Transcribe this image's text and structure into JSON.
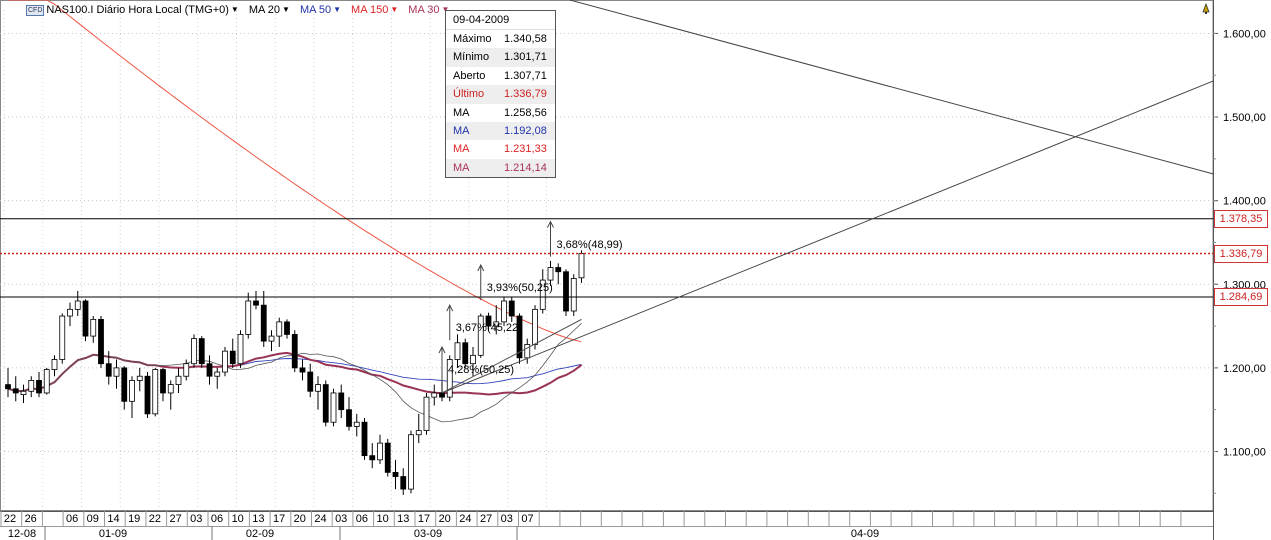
{
  "header": {
    "symbol": "NAS100.I",
    "instrument_badge": "CFD",
    "period": "Diário",
    "timezone": "Hora Local (TMG+0)",
    "indicators": [
      {
        "label": "MA 20",
        "color": "#222222"
      },
      {
        "label": "MA 50",
        "color": "#2233aa"
      },
      {
        "label": "MA 150",
        "color": "#dd2222"
      },
      {
        "label": "MA 30",
        "color": "#aa3355"
      }
    ]
  },
  "infobox": {
    "date": "09-04-2009",
    "rows": [
      {
        "label": "Máximo",
        "value": "1.340,58",
        "color": "#000000"
      },
      {
        "label": "Mínimo",
        "value": "1.301,71",
        "color": "#000000"
      },
      {
        "label": "Aberto",
        "value": "1.307,71",
        "color": "#000000"
      },
      {
        "label": "Último",
        "value": "1.336,79",
        "color": "#cc2222"
      },
      {
        "label": "MA",
        "value": "1.258,56",
        "color": "#000000"
      },
      {
        "label": "MA",
        "value": "1.192,08",
        "color": "#2233aa"
      },
      {
        "label": "MA",
        "value": "1.231,33",
        "color": "#dd2222"
      },
      {
        "label": "MA",
        "value": "1.214,14",
        "color": "#aa3355"
      }
    ]
  },
  "annotations": [
    {
      "text": "4,28%(50,25)",
      "date": "2009-03-16",
      "price": 1195
    },
    {
      "text": "3,67%(45,22)",
      "date": "2009-03-17",
      "price": 1245
    },
    {
      "text": "3,93%(50,25)",
      "date": "2009-03-23",
      "price": 1293
    },
    {
      "text": "3,68%(48,99)",
      "date": "2009-04-03",
      "price": 1345
    }
  ],
  "price_tags": [
    {
      "text": "1.378,35",
      "price": 1378.35
    },
    {
      "text": "1.336,79",
      "price": 1336.79
    },
    {
      "text": "1.284,69",
      "price": 1284.69
    }
  ],
  "chart_data": {
    "type": "candlestick",
    "ylim": [
      1030,
      1640
    ],
    "y_ticks": [
      {
        "value": 1100,
        "label": "1.100,00"
      },
      {
        "value": 1200,
        "label": "1.200,00"
      },
      {
        "value": 1300,
        "label": "1.300,00"
      },
      {
        "value": 1400,
        "label": "1.400,00"
      },
      {
        "value": 1500,
        "label": "1.500,00"
      },
      {
        "value": 1600,
        "label": "1.600,00"
      }
    ],
    "grid": true,
    "x_day_labels": [
      "22",
      "26",
      "06",
      "09",
      "14",
      "19",
      "22",
      "27",
      "03",
      "06",
      "10",
      "13",
      "17",
      "20",
      "24",
      "03",
      "06",
      "10",
      "13",
      "17",
      "20",
      "24",
      "27",
      "03",
      "07"
    ],
    "x_month_labels": [
      "12-08",
      "01-09",
      "02-09",
      "03-09",
      "04-09"
    ],
    "candles": [
      {
        "date": "2008-12-22",
        "o": 1180,
        "h": 1200,
        "l": 1165,
        "c": 1175
      },
      {
        "date": "2008-12-23",
        "o": 1175,
        "h": 1190,
        "l": 1160,
        "c": 1170
      },
      {
        "date": "2008-12-24",
        "o": 1168,
        "h": 1180,
        "l": 1158,
        "c": 1172
      },
      {
        "date": "2008-12-26",
        "o": 1172,
        "h": 1190,
        "l": 1165,
        "c": 1185
      },
      {
        "date": "2008-12-29",
        "o": 1185,
        "h": 1195,
        "l": 1165,
        "c": 1170
      },
      {
        "date": "2008-12-30",
        "o": 1170,
        "h": 1200,
        "l": 1168,
        "c": 1198
      },
      {
        "date": "2008-12-31",
        "o": 1198,
        "h": 1215,
        "l": 1190,
        "c": 1210
      },
      {
        "date": "2009-01-02",
        "o": 1210,
        "h": 1265,
        "l": 1205,
        "c": 1262
      },
      {
        "date": "2009-01-05",
        "o": 1262,
        "h": 1278,
        "l": 1250,
        "c": 1270
      },
      {
        "date": "2009-01-06",
        "o": 1270,
        "h": 1292,
        "l": 1262,
        "c": 1280
      },
      {
        "date": "2009-01-07",
        "o": 1280,
        "h": 1282,
        "l": 1232,
        "c": 1238
      },
      {
        "date": "2009-01-08",
        "o": 1238,
        "h": 1262,
        "l": 1230,
        "c": 1258
      },
      {
        "date": "2009-01-09",
        "o": 1258,
        "h": 1262,
        "l": 1200,
        "c": 1205
      },
      {
        "date": "2009-01-12",
        "o": 1205,
        "h": 1220,
        "l": 1180,
        "c": 1190
      },
      {
        "date": "2009-01-13",
        "o": 1190,
        "h": 1210,
        "l": 1175,
        "c": 1200
      },
      {
        "date": "2009-01-14",
        "o": 1200,
        "h": 1202,
        "l": 1150,
        "c": 1160
      },
      {
        "date": "2009-01-15",
        "o": 1160,
        "h": 1190,
        "l": 1140,
        "c": 1185
      },
      {
        "date": "2009-01-16",
        "o": 1185,
        "h": 1200,
        "l": 1172,
        "c": 1190
      },
      {
        "date": "2009-01-20",
        "o": 1190,
        "h": 1195,
        "l": 1140,
        "c": 1145
      },
      {
        "date": "2009-01-21",
        "o": 1145,
        "h": 1200,
        "l": 1142,
        "c": 1198
      },
      {
        "date": "2009-01-22",
        "o": 1198,
        "h": 1200,
        "l": 1160,
        "c": 1170
      },
      {
        "date": "2009-01-23",
        "o": 1170,
        "h": 1185,
        "l": 1150,
        "c": 1180
      },
      {
        "date": "2009-01-26",
        "o": 1180,
        "h": 1200,
        "l": 1170,
        "c": 1190
      },
      {
        "date": "2009-01-27",
        "o": 1190,
        "h": 1210,
        "l": 1185,
        "c": 1205
      },
      {
        "date": "2009-01-28",
        "o": 1205,
        "h": 1240,
        "l": 1200,
        "c": 1235
      },
      {
        "date": "2009-01-29",
        "o": 1235,
        "h": 1238,
        "l": 1200,
        "c": 1205
      },
      {
        "date": "2009-01-30",
        "o": 1205,
        "h": 1215,
        "l": 1180,
        "c": 1190
      },
      {
        "date": "2009-02-02",
        "o": 1190,
        "h": 1200,
        "l": 1175,
        "c": 1195
      },
      {
        "date": "2009-02-03",
        "o": 1195,
        "h": 1225,
        "l": 1190,
        "c": 1220
      },
      {
        "date": "2009-02-04",
        "o": 1220,
        "h": 1235,
        "l": 1200,
        "c": 1205
      },
      {
        "date": "2009-02-05",
        "o": 1205,
        "h": 1245,
        "l": 1200,
        "c": 1240
      },
      {
        "date": "2009-02-06",
        "o": 1240,
        "h": 1290,
        "l": 1235,
        "c": 1280
      },
      {
        "date": "2009-02-09",
        "o": 1280,
        "h": 1292,
        "l": 1270,
        "c": 1275
      },
      {
        "date": "2009-02-10",
        "o": 1275,
        "h": 1292,
        "l": 1225,
        "c": 1232
      },
      {
        "date": "2009-02-11",
        "o": 1232,
        "h": 1245,
        "l": 1220,
        "c": 1238
      },
      {
        "date": "2009-02-12",
        "o": 1238,
        "h": 1260,
        "l": 1225,
        "c": 1255
      },
      {
        "date": "2009-02-13",
        "o": 1255,
        "h": 1258,
        "l": 1235,
        "c": 1240
      },
      {
        "date": "2009-02-17",
        "o": 1240,
        "h": 1245,
        "l": 1195,
        "c": 1200
      },
      {
        "date": "2009-02-18",
        "o": 1200,
        "h": 1210,
        "l": 1185,
        "c": 1195
      },
      {
        "date": "2009-02-19",
        "o": 1195,
        "h": 1205,
        "l": 1165,
        "c": 1172
      },
      {
        "date": "2009-02-20",
        "o": 1172,
        "h": 1190,
        "l": 1150,
        "c": 1180
      },
      {
        "date": "2009-02-23",
        "o": 1180,
        "h": 1185,
        "l": 1130,
        "c": 1135
      },
      {
        "date": "2009-02-24",
        "o": 1135,
        "h": 1175,
        "l": 1130,
        "c": 1170
      },
      {
        "date": "2009-02-25",
        "o": 1170,
        "h": 1180,
        "l": 1140,
        "c": 1150
      },
      {
        "date": "2009-02-26",
        "o": 1150,
        "h": 1165,
        "l": 1125,
        "c": 1130
      },
      {
        "date": "2009-02-27",
        "o": 1130,
        "h": 1145,
        "l": 1118,
        "c": 1135
      },
      {
        "date": "2009-03-02",
        "o": 1135,
        "h": 1140,
        "l": 1090,
        "c": 1095
      },
      {
        "date": "2009-03-03",
        "o": 1095,
        "h": 1110,
        "l": 1080,
        "c": 1090
      },
      {
        "date": "2009-03-04",
        "o": 1090,
        "h": 1120,
        "l": 1085,
        "c": 1110
      },
      {
        "date": "2009-03-05",
        "o": 1110,
        "h": 1115,
        "l": 1070,
        "c": 1075
      },
      {
        "date": "2009-03-06",
        "o": 1075,
        "h": 1090,
        "l": 1055,
        "c": 1070
      },
      {
        "date": "2009-03-09",
        "o": 1070,
        "h": 1080,
        "l": 1048,
        "c": 1055
      },
      {
        "date": "2009-03-10",
        "o": 1055,
        "h": 1125,
        "l": 1050,
        "c": 1120
      },
      {
        "date": "2009-03-11",
        "o": 1120,
        "h": 1145,
        "l": 1110,
        "c": 1125
      },
      {
        "date": "2009-03-12",
        "o": 1125,
        "h": 1170,
        "l": 1120,
        "c": 1165
      },
      {
        "date": "2009-03-13",
        "o": 1165,
        "h": 1180,
        "l": 1155,
        "c": 1170
      },
      {
        "date": "2009-03-16",
        "o": 1170,
        "h": 1185,
        "l": 1160,
        "c": 1165
      },
      {
        "date": "2009-03-17",
        "o": 1165,
        "h": 1215,
        "l": 1160,
        "c": 1210
      },
      {
        "date": "2009-03-18",
        "o": 1210,
        "h": 1240,
        "l": 1200,
        "c": 1230
      },
      {
        "date": "2009-03-19",
        "o": 1230,
        "h": 1235,
        "l": 1200,
        "c": 1205
      },
      {
        "date": "2009-03-20",
        "o": 1205,
        "h": 1225,
        "l": 1190,
        "c": 1215
      },
      {
        "date": "2009-03-23",
        "o": 1215,
        "h": 1265,
        "l": 1212,
        "c": 1262
      },
      {
        "date": "2009-03-24",
        "o": 1262,
        "h": 1266,
        "l": 1245,
        "c": 1250
      },
      {
        "date": "2009-03-25",
        "o": 1250,
        "h": 1275,
        "l": 1240,
        "c": 1255
      },
      {
        "date": "2009-03-26",
        "o": 1255,
        "h": 1285,
        "l": 1250,
        "c": 1280
      },
      {
        "date": "2009-03-27",
        "o": 1280,
        "h": 1285,
        "l": 1255,
        "c": 1262
      },
      {
        "date": "2009-03-30",
        "o": 1262,
        "h": 1265,
        "l": 1205,
        "c": 1212
      },
      {
        "date": "2009-03-31",
        "o": 1212,
        "h": 1235,
        "l": 1205,
        "c": 1228
      },
      {
        "date": "2009-04-01",
        "o": 1228,
        "h": 1275,
        "l": 1222,
        "c": 1270
      },
      {
        "date": "2009-04-02",
        "o": 1270,
        "h": 1318,
        "l": 1265,
        "c": 1305
      },
      {
        "date": "2009-04-03",
        "o": 1305,
        "h": 1328,
        "l": 1298,
        "c": 1320
      },
      {
        "date": "2009-04-06",
        "o": 1320,
        "h": 1325,
        "l": 1300,
        "c": 1315
      },
      {
        "date": "2009-04-07",
        "o": 1315,
        "h": 1318,
        "l": 1262,
        "c": 1268
      },
      {
        "date": "2009-04-08",
        "o": 1268,
        "h": 1312,
        "l": 1262,
        "c": 1307
      },
      {
        "date": "2009-04-09",
        "o": 1307.71,
        "h": 1340.58,
        "l": 1301.71,
        "c": 1336.79
      }
    ]
  }
}
